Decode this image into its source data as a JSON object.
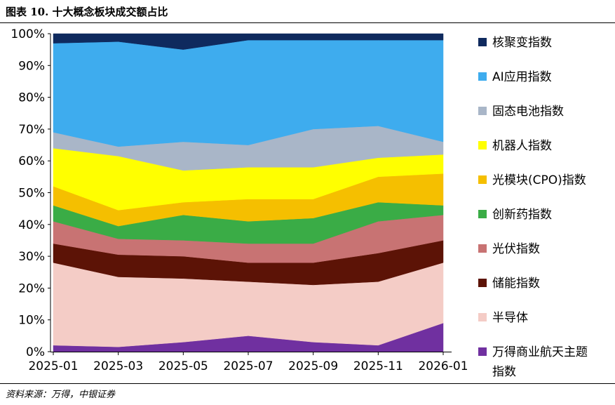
{
  "figure": {
    "title": "图表 10. 十大概念板块成交额占比",
    "source": "资料来源：万得，中银证券"
  },
  "chart_data": {
    "type": "area",
    "stacked": true,
    "percent": true,
    "x": [
      "2025-01",
      "2025-03",
      "2025-05",
      "2025-07",
      "2025-09",
      "2025-11",
      "2026-01"
    ],
    "ylim": [
      0,
      100
    ],
    "y_ticks": [
      "0%",
      "10%",
      "20%",
      "30%",
      "40%",
      "50%",
      "60%",
      "70%",
      "80%",
      "90%",
      "100%"
    ],
    "legend_position": "right",
    "series": [
      {
        "name": "万得商业航天主题指数",
        "label_lines": [
          "万得商业航天主题",
          "指数"
        ],
        "color": "#7030a0",
        "values": [
          2,
          1.5,
          3,
          5,
          3,
          2,
          9
        ]
      },
      {
        "name": "半导体",
        "color": "#f4ccc6",
        "values": [
          26,
          22,
          20,
          17,
          18,
          20,
          19
        ]
      },
      {
        "name": "储能指数",
        "color": "#5c1306",
        "values": [
          6,
          7,
          7,
          6,
          7,
          9,
          7
        ]
      },
      {
        "name": "光伏指数",
        "color": "#c87373",
        "values": [
          7,
          5,
          5,
          6,
          6,
          10,
          8
        ]
      },
      {
        "name": "创新药指数",
        "color": "#3aac46",
        "values": [
          5,
          4,
          8,
          7,
          8,
          6,
          3
        ]
      },
      {
        "name": "光模块(CPO)指数",
        "color": "#f5bf00",
        "values": [
          6,
          5,
          4,
          7,
          6,
          8,
          10
        ]
      },
      {
        "name": "机器人指数",
        "color": "#ffff00",
        "values": [
          12,
          17,
          10,
          10,
          10,
          6,
          6
        ]
      },
      {
        "name": "固态电池指数",
        "color": "#a9b6c8",
        "values": [
          5,
          3,
          9,
          7,
          12,
          10,
          4
        ]
      },
      {
        "name": "AI应用指数",
        "color": "#3eacee",
        "values": [
          28,
          33,
          29,
          33,
          28,
          27,
          32
        ]
      },
      {
        "name": "核聚变指数",
        "color": "#0f2a5e",
        "values": [
          3,
          2.5,
          5,
          2,
          2,
          2,
          2
        ]
      }
    ]
  }
}
